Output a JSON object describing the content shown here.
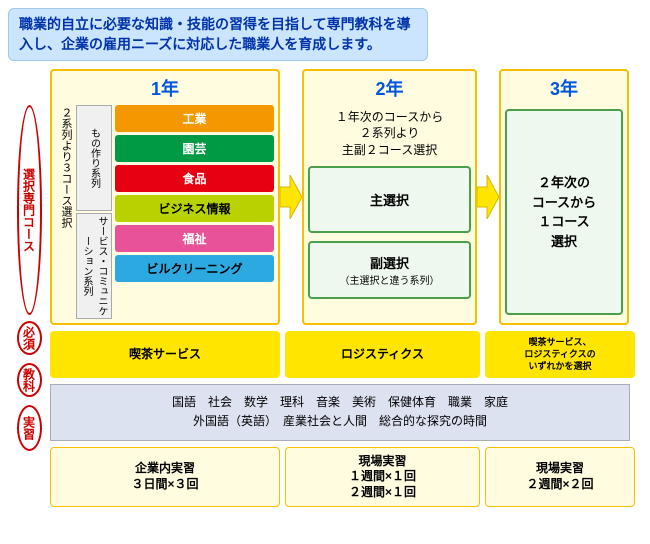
{
  "intro_text": "職業的自立に必要な知識・技能の習得を目指して専門教科を導入し、企業の雇用ニーズに対応した職業人を育成します。",
  "left_labels": {
    "course": "選択専門コース",
    "required": "必須",
    "subjects": "教科",
    "practice": "実習"
  },
  "years": {
    "y1": "1年",
    "y2": "2年",
    "y3": "3年"
  },
  "y1": {
    "side_note": "２系列より３コース選択",
    "series_a": "もの作り系列",
    "series_b": "サービス・コミュニケーション系列",
    "courses": [
      {
        "label": "工業",
        "bg": "#f39800",
        "fg": "#ffffff"
      },
      {
        "label": "園芸",
        "bg": "#009944",
        "fg": "#ffffff"
      },
      {
        "label": "食品",
        "bg": "#e60012",
        "fg": "#ffffff"
      },
      {
        "label": "ビジネス情報",
        "bg": "#b8d200",
        "fg": "#000000"
      },
      {
        "label": "福祉",
        "bg": "#e85298",
        "fg": "#ffffff"
      },
      {
        "label": "ビルクリーニング",
        "bg": "#2ca9e1",
        "fg": "#000000"
      }
    ]
  },
  "y2": {
    "note": "１年次のコースから\n２系列より\n主副２コース選択",
    "main": "主選択",
    "sub": "副選択",
    "sub_note": "（主選択と違う系列）"
  },
  "y3": {
    "box": "２年次の\nコースから\n１コース\n選択"
  },
  "required_row": {
    "a": "喫茶サービス",
    "b": "ロジスティクス",
    "c": "喫茶サービス、\nロジスティクスの\nいずれかを選択",
    "bg": "#ffe500"
  },
  "subjects_row": "国語　社会　数学　理科　音楽　美術　保健体育　職業　家庭\n外国語（英語）　産業社会と人間　総合的な探究の時間",
  "practice_row": {
    "a": "企業内実習\n３日間×３回",
    "b": "現場実習\n１週間×１回\n２週間×１回",
    "c": "現場実習\n２週間×２回",
    "bg": "#fffce0",
    "border": "#f5c000"
  },
  "colors": {
    "oval_border": "#cc0000",
    "year_bg": "#fffce0",
    "year_border": "#f5c000",
    "arrow": "#ffe500",
    "arrow_stroke": "#d4b800"
  }
}
